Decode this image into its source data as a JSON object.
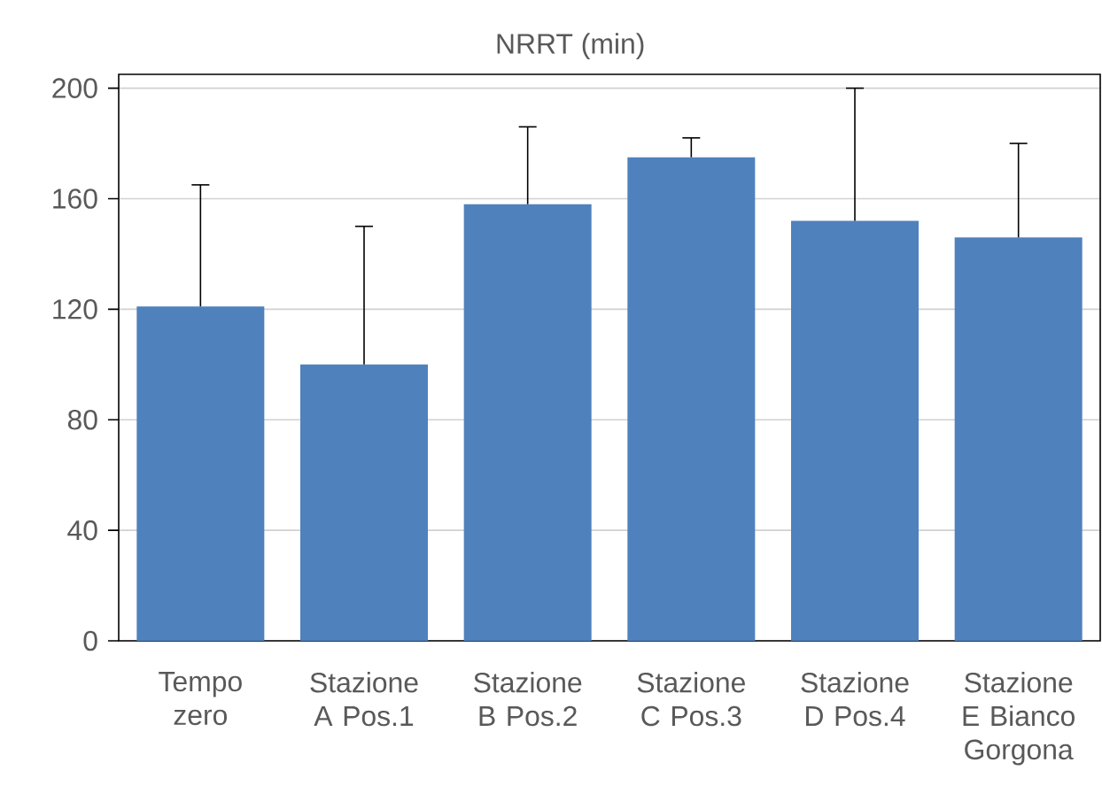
{
  "chart_data": {
    "type": "bar",
    "title": "NRRT (min)",
    "categories": [
      "Tempo zero",
      "Stazione A Pos.1",
      "Stazione B Pos.2",
      "Stazione C Pos.3",
      "Stazione D Pos.4",
      "Stazione E Bianco Gorgona"
    ],
    "values": [
      121,
      100,
      158,
      175,
      152,
      146
    ],
    "errors": [
      [
        121,
        165
      ],
      [
        100,
        150
      ],
      [
        158,
        186
      ],
      [
        175,
        182
      ],
      [
        152,
        200
      ],
      [
        146,
        180
      ]
    ],
    "color": "#4f81bd",
    "ylim": [
      0,
      205
    ],
    "yticks": [
      0,
      40,
      80,
      120,
      160,
      200
    ],
    "grid": "y"
  }
}
